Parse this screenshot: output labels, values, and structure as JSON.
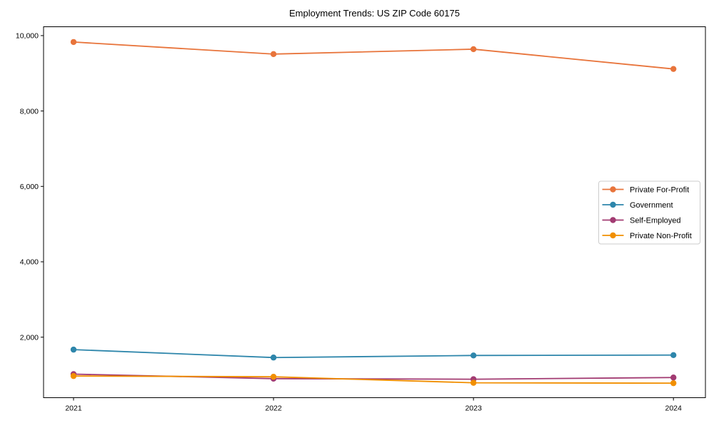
{
  "chart_data": {
    "type": "line",
    "title": "Employment Trends: US ZIP Code 60175",
    "xlabel": "",
    "ylabel": "",
    "x": [
      2021,
      2022,
      2023,
      2024
    ],
    "x_tick_labels": [
      "2021",
      "2022",
      "2023",
      "2024"
    ],
    "y_ticks": [
      2000,
      4000,
      6000,
      8000,
      10000
    ],
    "y_tick_labels": [
      "2,000",
      "4,000",
      "6,000",
      "8,000",
      "10,000"
    ],
    "xlim": [
      2020.85,
      2024.16
    ],
    "ylim": [
      395,
      10235
    ],
    "grid": false,
    "legend_position": "center right",
    "marker": "circle",
    "series": [
      {
        "name": "Private For-Profit",
        "color": "#E8743B",
        "values": [
          9830,
          9510,
          9640,
          9115
        ]
      },
      {
        "name": "Government",
        "color": "#2E86AB",
        "values": [
          1670,
          1460,
          1515,
          1525
        ]
      },
      {
        "name": "Self-Employed",
        "color": "#A23B72",
        "values": [
          1020,
          900,
          885,
          930
        ]
      },
      {
        "name": "Private Non-Profit",
        "color": "#F18F01",
        "values": [
          970,
          950,
          790,
          780
        ]
      }
    ],
    "colors": {
      "background": "#ffffff",
      "axis": "#000000",
      "legend_border": "#cccccc",
      "legend_background": "#ffffff"
    }
  }
}
